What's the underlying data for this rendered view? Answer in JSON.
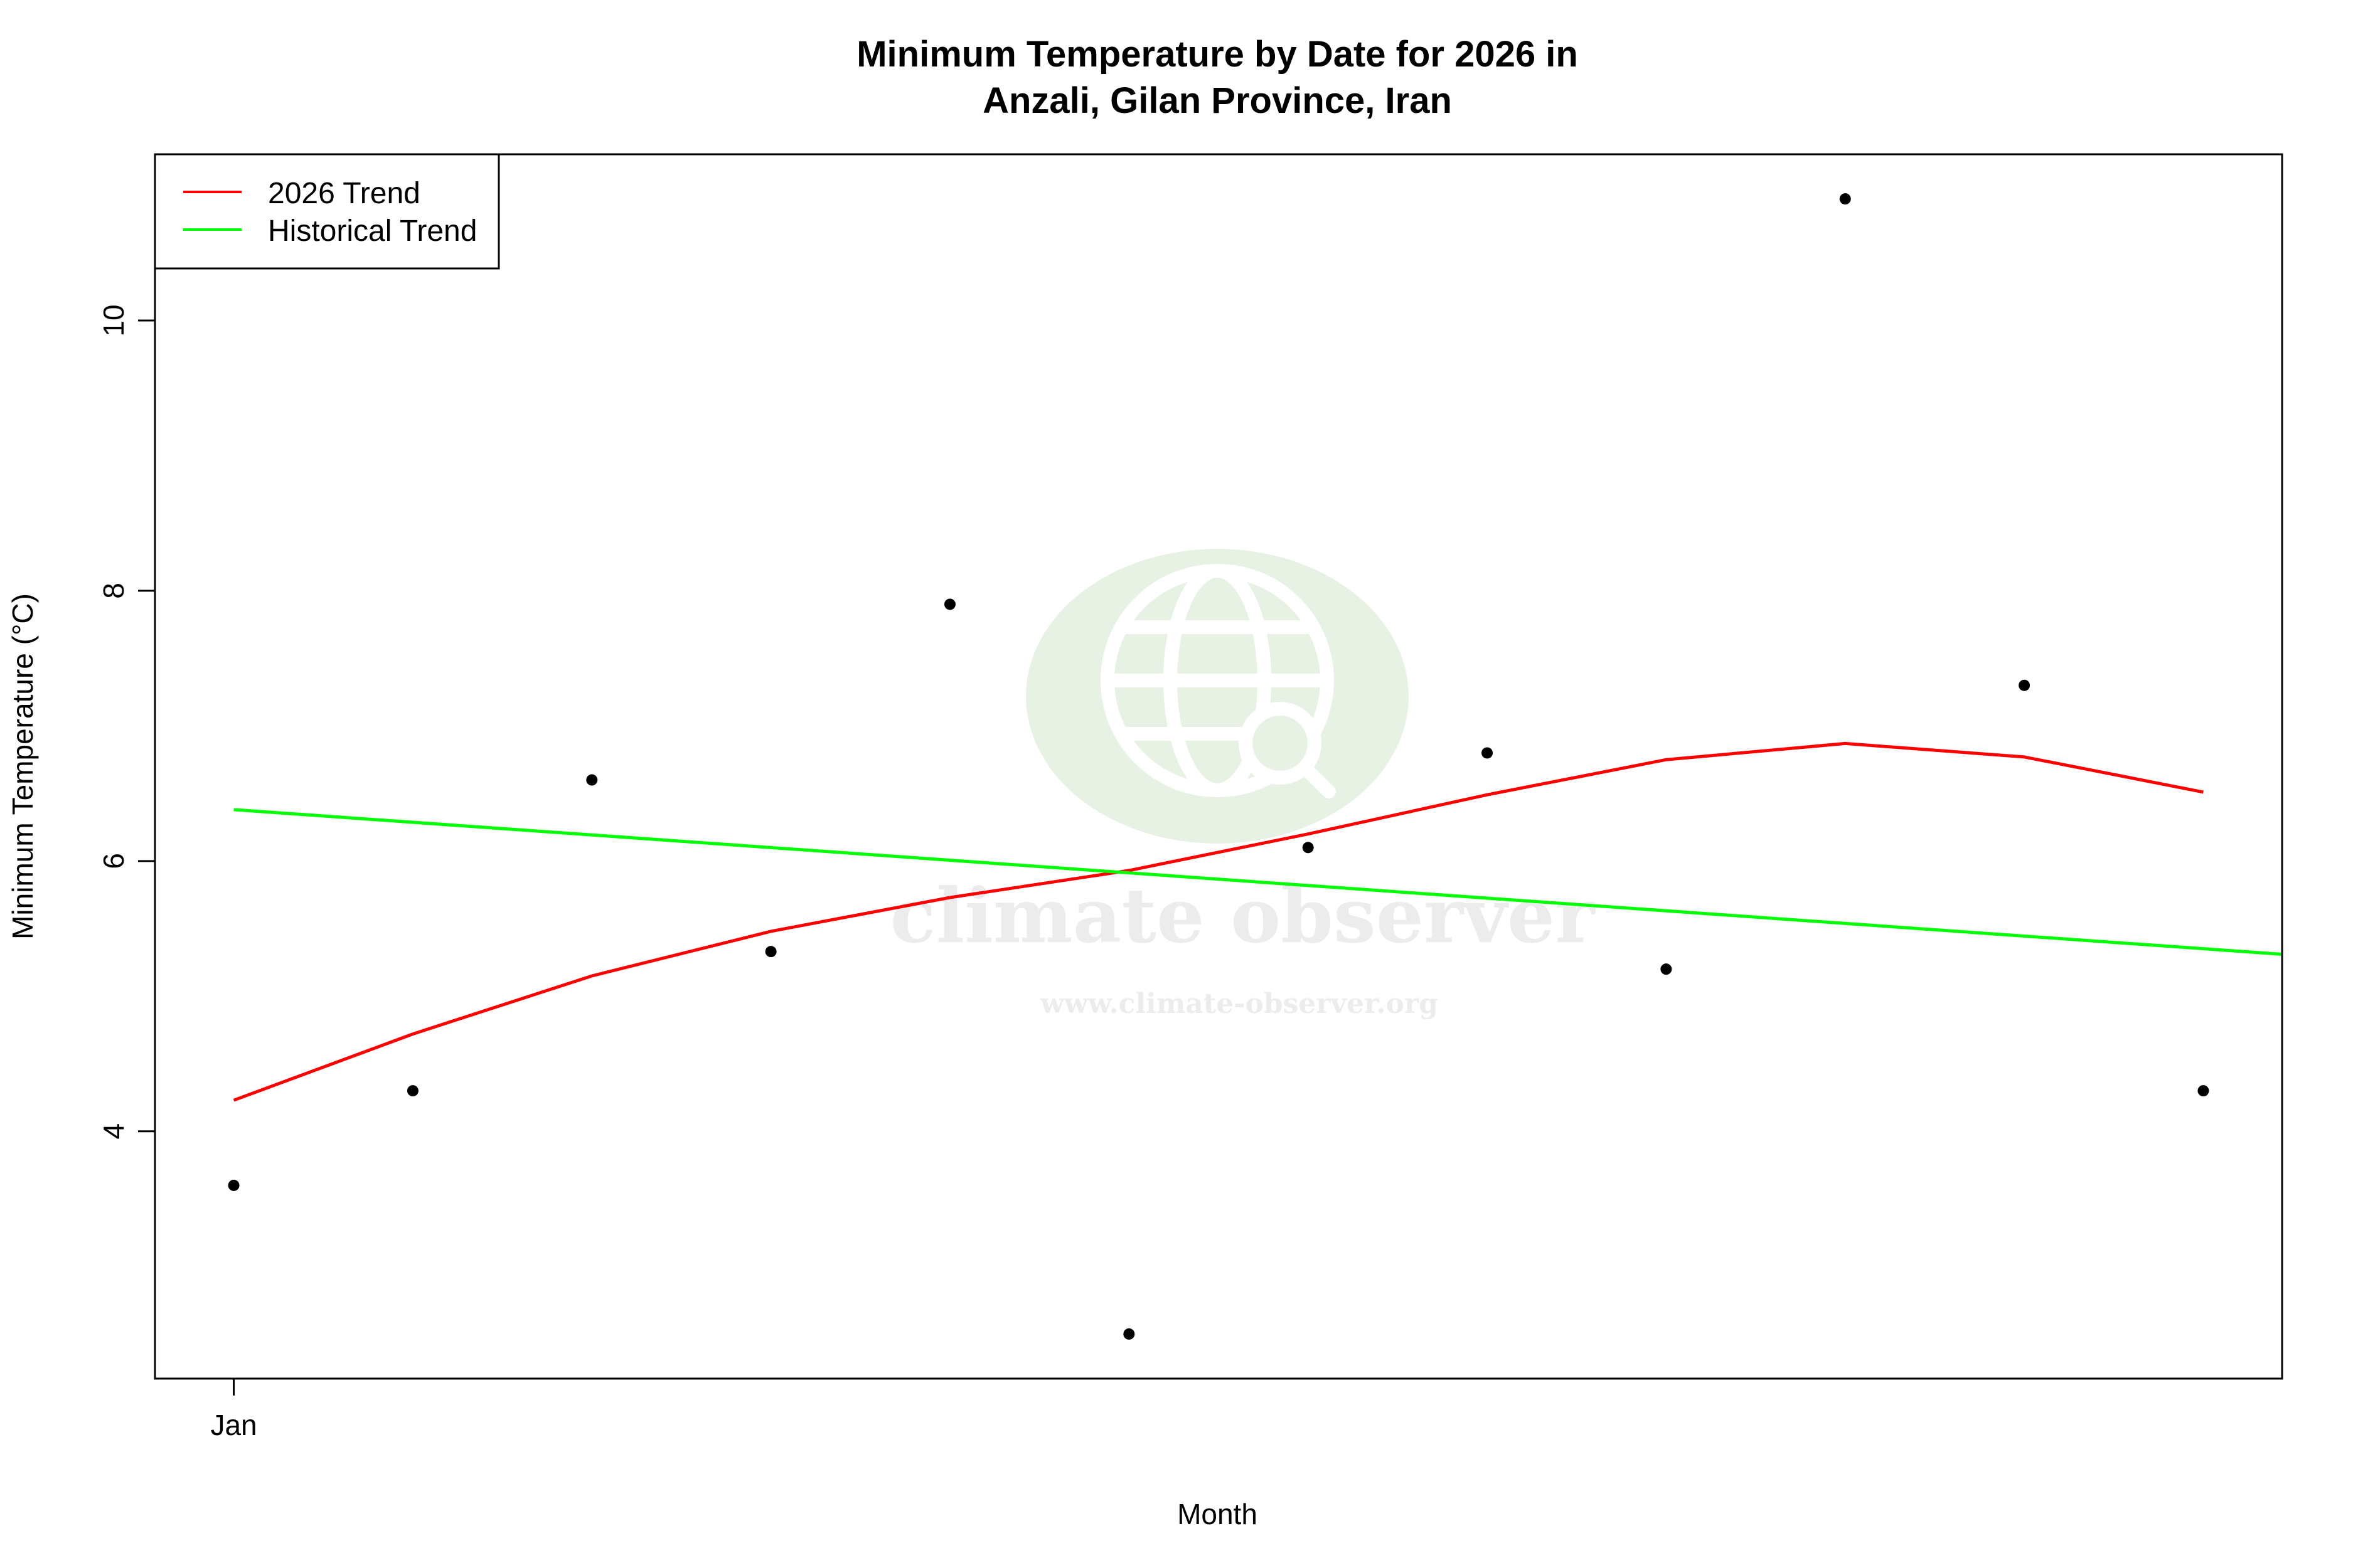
{
  "chart_data": {
    "type": "scatter",
    "title": [
      "Minimum Temperature by Date for 2026 in",
      "Anzali, Gilan Province, Iran"
    ],
    "xlabel": "Month",
    "ylabel": "Minimum Temperature (°C)",
    "x_ticks": [
      {
        "x": 1,
        "label": "Jan"
      }
    ],
    "y_ticks": [
      4,
      6,
      8,
      10
    ],
    "xlim": [
      0.56,
      12.44
    ],
    "ylim": [
      2.17,
      11.23
    ],
    "points": {
      "x": [
        1,
        2,
        3,
        4,
        5,
        6,
        7,
        8,
        9,
        10,
        11,
        12
      ],
      "y": [
        3.6,
        4.3,
        6.6,
        5.33,
        7.9,
        2.5,
        6.1,
        6.8,
        5.2,
        10.9,
        7.3,
        4.3
      ],
      "color": "#000000"
    },
    "series": [
      {
        "name": "2026 Trend",
        "color": "#ff0000",
        "x": [
          1,
          2,
          3,
          4,
          5,
          6,
          7,
          8,
          9,
          10,
          11,
          12
        ],
        "y": [
          4.23,
          4.72,
          5.15,
          5.48,
          5.73,
          5.93,
          6.2,
          6.49,
          6.75,
          6.87,
          6.77,
          6.51
        ]
      },
      {
        "name": "Historical Trend",
        "color": "#00ff00",
        "x": [
          1,
          12.44
        ],
        "y": [
          6.38,
          5.31
        ]
      }
    ],
    "legend": {
      "position": "top-left"
    },
    "grid": false
  },
  "watermark": {
    "name": "climate observer",
    "url": "www.climate-observer.org",
    "icon": "globe-search-icon",
    "color": "#d9ead3"
  }
}
